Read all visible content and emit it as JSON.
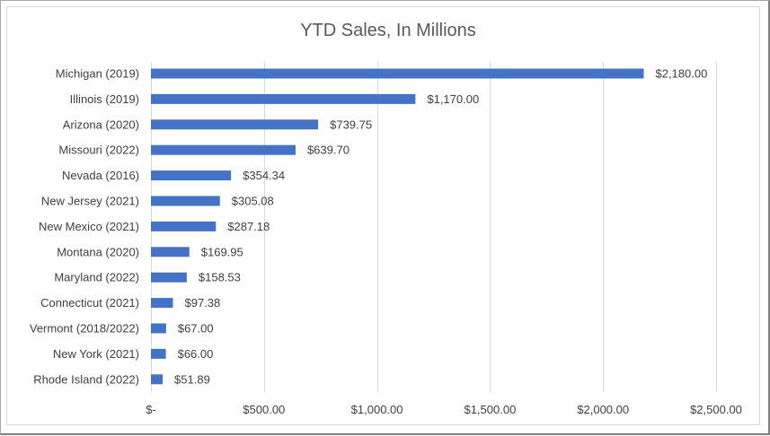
{
  "chart_data": {
    "type": "bar",
    "orientation": "horizontal",
    "title": "YTD Sales, In Millions",
    "xlabel": "",
    "ylabel": "",
    "xlim": [
      0,
      2500
    ],
    "grid": true,
    "legend": "none",
    "bar_color": "#4472c4",
    "categories": [
      "Michigan (2019)",
      "Illinois (2019)",
      "Arizona (2020)",
      "Missouri (2022)",
      "Nevada (2016)",
      "New Jersey (2021)",
      "New Mexico (2021)",
      "Montana (2020)",
      "Maryland (2022)",
      "Connecticut (2021)",
      "Vermont (2018/2022)",
      "New York (2021)",
      "Rhode Island (2022)"
    ],
    "values": [
      2180.0,
      1170.0,
      739.75,
      639.7,
      354.34,
      305.08,
      287.18,
      169.95,
      158.53,
      97.38,
      67.0,
      66.0,
      51.89
    ],
    "data_labels": [
      "$2,180.00",
      "$1,170.00",
      "$739.75",
      "$639.70",
      "$354.34",
      "$305.08",
      "$287.18",
      "$169.95",
      "$158.53",
      "$97.38",
      "$67.00",
      "$66.00",
      "$51.89"
    ],
    "ticks": [
      0,
      500,
      1000,
      1500,
      2000,
      2500
    ],
    "tick_labels": [
      "$-",
      "$500.00",
      "$1,000.00",
      "$1,500.00",
      "$2,000.00",
      "$2,500.00"
    ]
  }
}
